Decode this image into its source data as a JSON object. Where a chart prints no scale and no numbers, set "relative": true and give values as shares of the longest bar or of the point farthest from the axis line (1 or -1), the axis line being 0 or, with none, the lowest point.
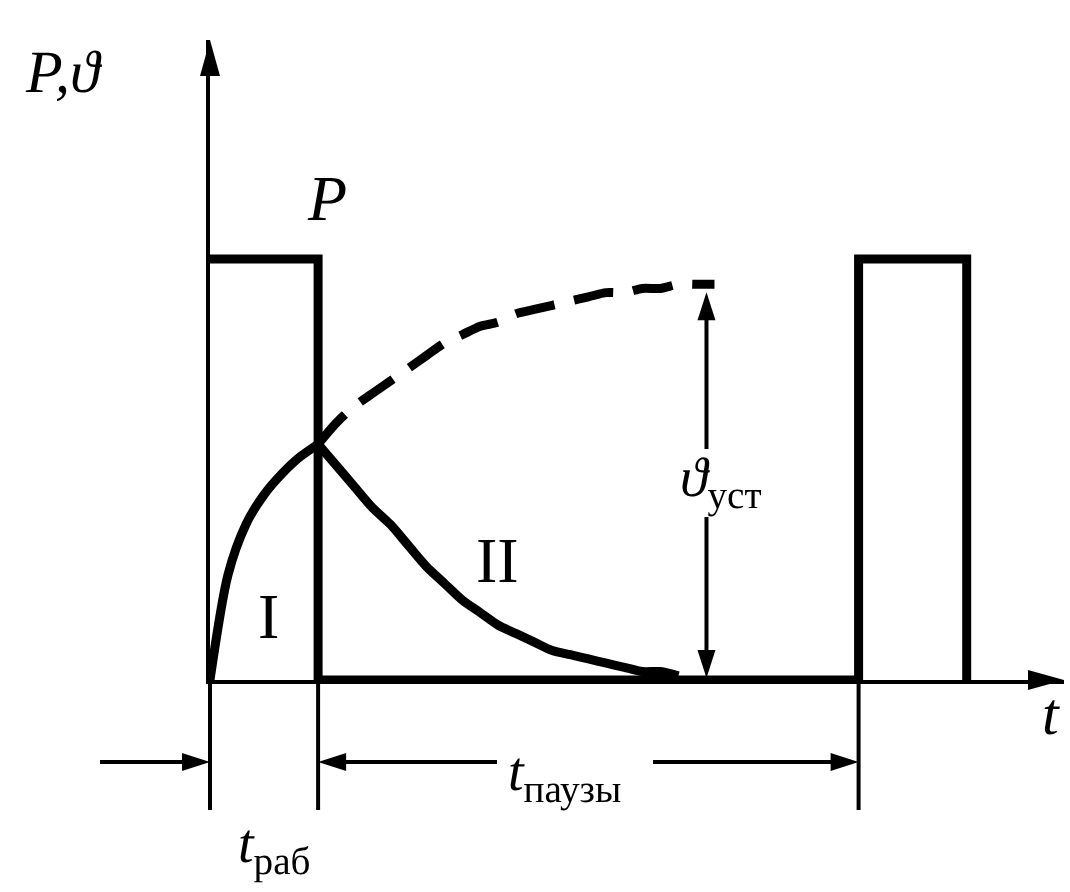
{
  "chart_data": {
    "type": "line",
    "relative": true,
    "legend": false,
    "xlabel": "t",
    "ylabel": "P,ϑ",
    "categories": [
      null,
      null,
      null,
      null,
      null,
      null,
      null,
      null,
      null,
      null,
      null,
      null,
      null,
      null,
      null,
      null,
      null,
      null,
      null,
      null,
      null,
      null,
      null,
      null,
      null,
      null,
      null,
      null,
      null,
      null,
      null,
      null,
      null,
      null,
      null,
      null,
      null,
      null,
      null,
      null,
      null,
      null,
      null,
      null,
      null,
      null,
      null,
      null
    ],
    "series": [
      {
        "name": "P",
        "type": "step",
        "color": "#000000",
        "values": [
          1,
          1,
          1,
          1,
          1,
          1,
          0,
          0,
          0,
          0,
          0,
          0,
          0,
          0,
          0,
          0,
          0,
          0,
          0,
          0,
          0,
          0,
          0,
          0,
          0,
          0,
          0,
          0,
          0,
          0,
          0,
          0,
          0,
          0,
          0,
          0,
          1,
          1,
          1,
          1,
          1,
          1,
          0,
          null,
          null,
          null,
          null,
          null
        ]
      },
      {
        "name": "I",
        "color": "#000000",
        "values": [
          0,
          0.25,
          0.37,
          0.44,
          0.49,
          0.53,
          0.56,
          null,
          null,
          null,
          null,
          null,
          null,
          null,
          null,
          null,
          null,
          null,
          null,
          null,
          null,
          null,
          null,
          null,
          null,
          null,
          null,
          null,
          null,
          null,
          null,
          null,
          null,
          null,
          null,
          null,
          null,
          null,
          null,
          null,
          null,
          null,
          null,
          null,
          null,
          null,
          null,
          null
        ]
      },
      {
        "name": "II",
        "color": "#000000",
        "values": [
          null,
          null,
          null,
          null,
          null,
          null,
          0.56,
          0.51,
          0.46,
          0.41,
          0.37,
          0.32,
          0.27,
          0.23,
          0.19,
          0.16,
          0.13,
          0.11,
          0.09,
          0.07,
          0.06,
          0.05,
          0.04,
          0.03,
          0.02,
          0.02,
          0.01,
          null,
          null,
          null,
          null,
          null,
          null,
          null,
          null,
          null,
          null,
          null,
          null,
          null,
          null,
          null,
          null,
          null,
          null,
          null,
          null,
          null
        ]
      },
      {
        "color": "#000000",
        "line_style": "dashed",
        "values": [
          null,
          null,
          null,
          null,
          null,
          null,
          0.56,
          0.61,
          0.65,
          0.68,
          0.71,
          0.74,
          0.77,
          0.8,
          0.82,
          0.84,
          0.85,
          0.87,
          0.88,
          0.89,
          0.9,
          0.91,
          0.92,
          0.92,
          0.93,
          0.93,
          0.94,
          0.94,
          0.94,
          null,
          null,
          null,
          null,
          null,
          null,
          null,
          null,
          null,
          null,
          null,
          null,
          null,
          null,
          null,
          null,
          null,
          null,
          null
        ]
      }
    ],
    "annotations": [
      "ϑ$_{уст}$",
      "t$_{паузы}$",
      "t$_{раб}$"
    ]
  }
}
